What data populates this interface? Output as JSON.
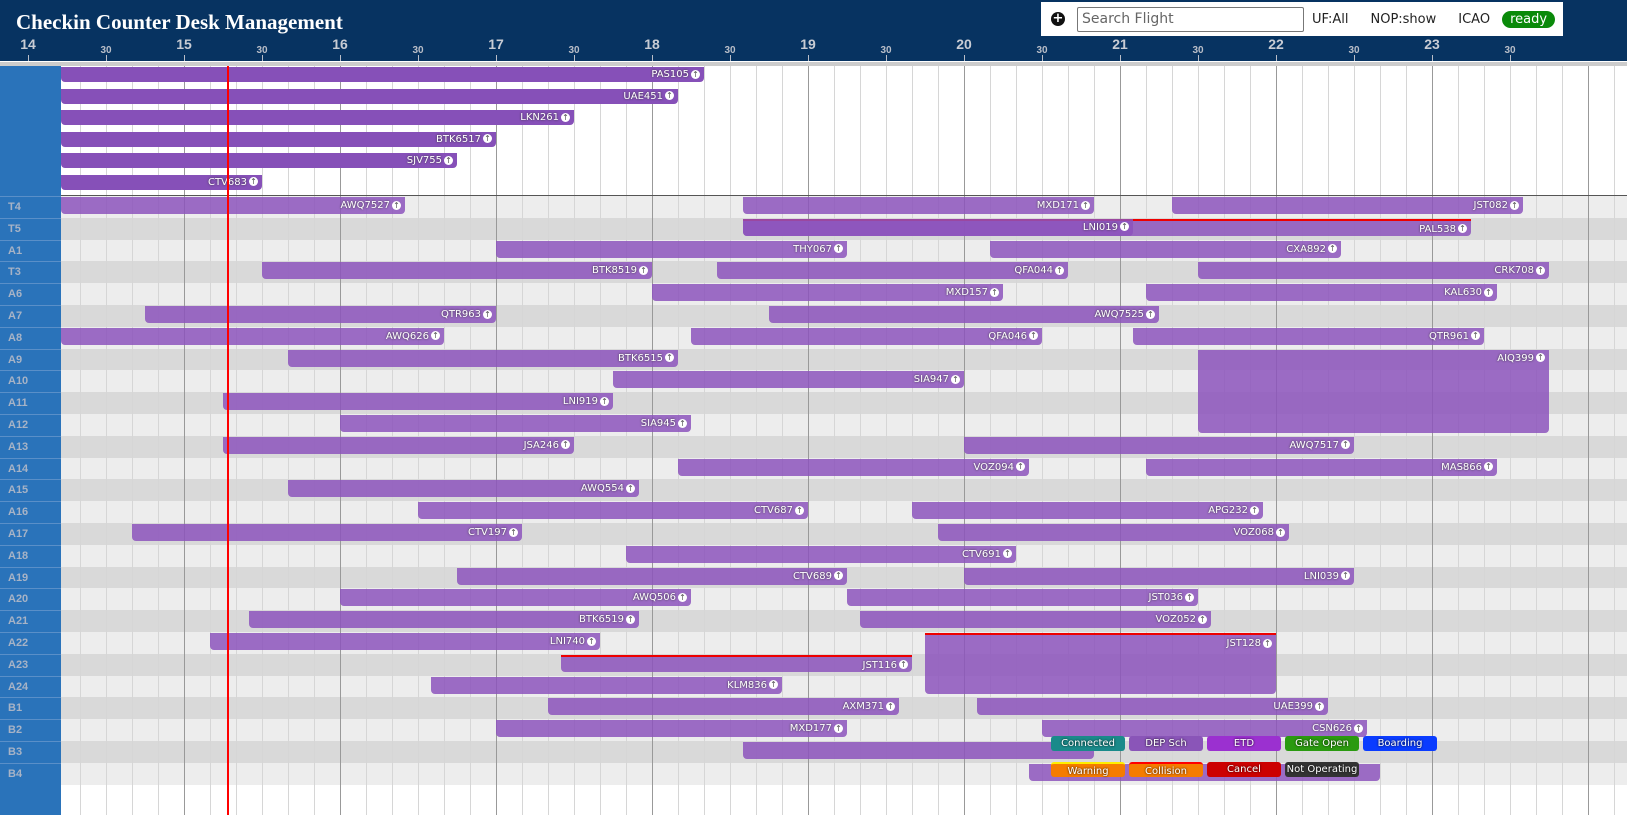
{
  "header": {
    "title": "Checkin Counter Desk Management"
  },
  "toolbar": {
    "add_icon": "plus-circle-icon",
    "search_placeholder": "Search Flight",
    "search_value": "",
    "uf": "UF:All",
    "nop": "NOP:show",
    "icao": "ICAO",
    "status": "ready",
    "status_color": "#0a8a0a"
  },
  "timeline": {
    "hours": [
      "14",
      "15",
      "16",
      "17",
      "18",
      "19",
      "20",
      "21",
      "22",
      "23"
    ],
    "half_label": "30",
    "current_time": "15:17"
  },
  "colors": {
    "header": "#073361",
    "row_label_bg": "#2a73ba",
    "bar_top": "#8650b8",
    "bar_main": "#9a6ac2",
    "now_line": "#ff0000"
  },
  "top_rows": [
    {
      "bars": [
        {
          "code": "PAS105",
          "start": "12:00",
          "end": "18:20"
        }
      ]
    },
    {
      "bars": [
        {
          "code": "UAE451",
          "start": "12:00",
          "end": "18:10"
        }
      ]
    },
    {
      "bars": [
        {
          "code": "LKN261",
          "start": "12:00",
          "end": "17:30"
        }
      ]
    },
    {
      "bars": [
        {
          "code": "BTK6517",
          "start": "12:00",
          "end": "17:00"
        }
      ]
    },
    {
      "bars": [
        {
          "code": "SJV755",
          "start": "12:00",
          "end": "16:45"
        }
      ]
    },
    {
      "bars": [
        {
          "code": "CTV683",
          "start": "12:00",
          "end": "15:30"
        }
      ]
    }
  ],
  "rows": [
    {
      "label": "T4",
      "bars": [
        {
          "code": "AWQ7527",
          "start": "12:00",
          "end": "16:25"
        },
        {
          "code": "MXD171",
          "start": "18:35",
          "end": "20:50"
        },
        {
          "code": "JST082",
          "start": "21:20",
          "end": "23:35"
        }
      ]
    },
    {
      "label": "T5",
      "bars": [
        {
          "code": "PAL538",
          "start": "18:35",
          "end": "23:15",
          "collision": true
        },
        {
          "code": "LNI019",
          "start": "18:35",
          "end": "21:05"
        }
      ]
    },
    {
      "label": "A1",
      "bars": [
        {
          "code": "THY067",
          "start": "17:00",
          "end": "19:15"
        },
        {
          "code": "CXA892",
          "start": "20:10",
          "end": "22:25"
        }
      ]
    },
    {
      "label": "T3",
      "bars": [
        {
          "code": "BTK8519",
          "start": "15:30",
          "end": "18:00"
        },
        {
          "code": "QFA044",
          "start": "18:25",
          "end": "20:40"
        },
        {
          "code": "CRK708",
          "start": "21:30",
          "end": "23:45"
        }
      ]
    },
    {
      "label": "A6",
      "bars": [
        {
          "code": "MXD157",
          "start": "18:00",
          "end": "20:15"
        },
        {
          "code": "KAL630",
          "start": "21:10",
          "end": "23:25"
        }
      ]
    },
    {
      "label": "A7",
      "bars": [
        {
          "code": "QTR963",
          "start": "14:45",
          "end": "17:00"
        },
        {
          "code": "AWQ7525",
          "start": "18:45",
          "end": "21:15"
        }
      ]
    },
    {
      "label": "A8",
      "bars": [
        {
          "code": "AWQ626",
          "start": "12:00",
          "end": "16:40"
        },
        {
          "code": "QFA046",
          "start": "18:15",
          "end": "20:30"
        },
        {
          "code": "QTR961",
          "start": "21:05",
          "end": "23:20"
        }
      ]
    },
    {
      "label": "A9",
      "bars": [
        {
          "code": "BTK6515",
          "start": "15:40",
          "end": "18:10"
        },
        {
          "code": "AIQ399",
          "start": "21:30",
          "end": "23:45",
          "span": 4
        }
      ]
    },
    {
      "label": "A10",
      "bars": [
        {
          "code": "SIA947",
          "start": "17:45",
          "end": "20:00"
        }
      ]
    },
    {
      "label": "A11",
      "bars": [
        {
          "code": "LNI919",
          "start": "15:15",
          "end": "17:45"
        }
      ]
    },
    {
      "label": "A12",
      "bars": [
        {
          "code": "SIA945",
          "start": "16:00",
          "end": "18:15"
        }
      ]
    },
    {
      "label": "A13",
      "bars": [
        {
          "code": "JSA246",
          "start": "15:15",
          "end": "17:30"
        },
        {
          "code": "AWQ7517",
          "start": "20:00",
          "end": "22:30"
        }
      ]
    },
    {
      "label": "A14",
      "bars": [
        {
          "code": "VOZ094",
          "start": "18:10",
          "end": "20:25"
        },
        {
          "code": "MAS866",
          "start": "21:10",
          "end": "23:25"
        }
      ]
    },
    {
      "label": "A15",
      "bars": [
        {
          "code": "AWQ554",
          "start": "15:40",
          "end": "17:55"
        }
      ]
    },
    {
      "label": "A16",
      "bars": [
        {
          "code": "CTV687",
          "start": "16:30",
          "end": "19:00"
        },
        {
          "code": "APG232",
          "start": "19:40",
          "end": "21:55"
        }
      ]
    },
    {
      "label": "A17",
      "bars": [
        {
          "code": "CTV197",
          "start": "14:40",
          "end": "17:10"
        },
        {
          "code": "VOZ068",
          "start": "19:50",
          "end": "22:05"
        }
      ]
    },
    {
      "label": "A18",
      "bars": [
        {
          "code": "CTV691",
          "start": "17:50",
          "end": "20:20"
        }
      ]
    },
    {
      "label": "A19",
      "bars": [
        {
          "code": "CTV689",
          "start": "16:45",
          "end": "19:15"
        },
        {
          "code": "LNI039",
          "start": "20:00",
          "end": "22:30"
        }
      ]
    },
    {
      "label": "A20",
      "bars": [
        {
          "code": "AWQ506",
          "start": "16:00",
          "end": "18:15"
        },
        {
          "code": "JST036",
          "start": "19:15",
          "end": "21:30"
        }
      ]
    },
    {
      "label": "A21",
      "bars": [
        {
          "code": "BTK6519",
          "start": "15:25",
          "end": "17:55"
        },
        {
          "code": "VOZ052",
          "start": "19:20",
          "end": "21:35"
        }
      ]
    },
    {
      "label": "A22",
      "bars": [
        {
          "code": "LNI740",
          "start": "15:10",
          "end": "17:40"
        },
        {
          "code": "JST128",
          "start": "19:45",
          "end": "22:00",
          "span": 3,
          "collision": true
        }
      ]
    },
    {
      "label": "A23",
      "bars": [
        {
          "code": "JST116",
          "start": "17:25",
          "end": "19:40",
          "collision": true
        }
      ]
    },
    {
      "label": "A24",
      "bars": [
        {
          "code": "KLM836",
          "start": "16:35",
          "end": "18:50"
        }
      ]
    },
    {
      "label": "B1",
      "bars": [
        {
          "code": "AXM371",
          "start": "17:20",
          "end": "19:35"
        },
        {
          "code": "UAE399",
          "start": "20:05",
          "end": "22:20"
        }
      ]
    },
    {
      "label": "B2",
      "bars": [
        {
          "code": "MXD177",
          "start": "17:00",
          "end": "19:15"
        },
        {
          "code": "CSN626",
          "start": "20:30",
          "end": "22:35"
        }
      ]
    },
    {
      "label": "B3",
      "bars": [
        {
          "code": "",
          "start": "18:35",
          "end": "20:50"
        }
      ]
    },
    {
      "label": "B4",
      "bars": [
        {
          "code": "",
          "start": "20:25",
          "end": "22:40"
        }
      ]
    }
  ],
  "legend": [
    [
      {
        "label": "Connected",
        "color": "#1a8a8a"
      },
      {
        "label": "DEP Sch",
        "color": "#8a55b8"
      },
      {
        "label": "ETD",
        "color": "#9b30d0"
      },
      {
        "label": "Gate Open",
        "color": "#2a9a10"
      },
      {
        "label": "Boarding",
        "color": "#0a3cff"
      }
    ],
    [
      {
        "label": "Warning",
        "color": "#f57c00",
        "top": "#ffee00"
      },
      {
        "label": "Collision",
        "color": "#f57c00",
        "top": "#ff0000"
      },
      {
        "label": "Cancel",
        "color": "#cc0000"
      },
      {
        "label": "Not Operating",
        "color": "#333333"
      }
    ]
  ]
}
